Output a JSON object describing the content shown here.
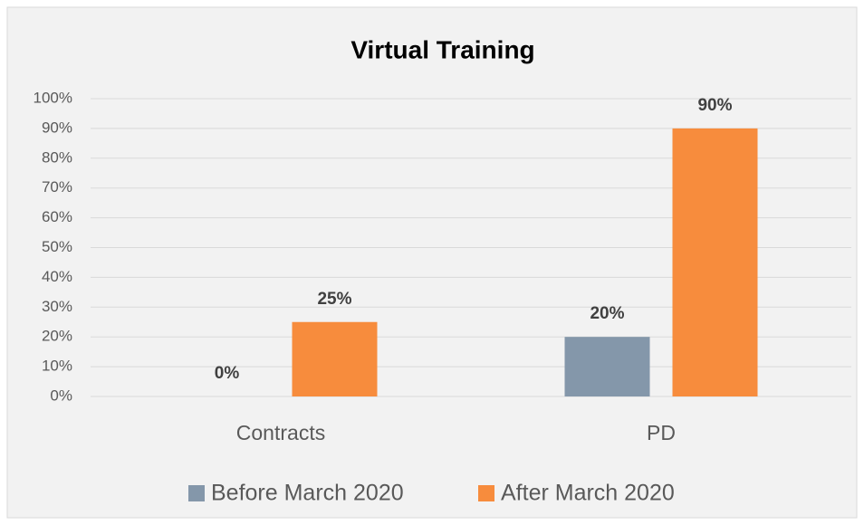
{
  "chart_data": {
    "type": "bar",
    "title": "Virtual Training",
    "categories": [
      "Contracts",
      "PD"
    ],
    "series": [
      {
        "name": "Before March 2020",
        "color": "#8497aa",
        "values": [
          0,
          20
        ],
        "value_labels": [
          "0%",
          "20%"
        ]
      },
      {
        "name": "After March 2020",
        "color": "#f78c3d",
        "values": [
          25,
          90
        ],
        "value_labels": [
          "25%",
          "90%"
        ]
      }
    ],
    "ylim": [
      0,
      100
    ],
    "yticks": [
      {
        "value": 0,
        "label": "0%"
      },
      {
        "value": 10,
        "label": "10%"
      },
      {
        "value": 20,
        "label": "20%"
      },
      {
        "value": 30,
        "label": "30%"
      },
      {
        "value": 40,
        "label": "40%"
      },
      {
        "value": 50,
        "label": "50%"
      },
      {
        "value": 60,
        "label": "60%"
      },
      {
        "value": 70,
        "label": "70%"
      },
      {
        "value": 80,
        "label": "80%"
      },
      {
        "value": 90,
        "label": "90%"
      },
      {
        "value": 100,
        "label": "100%"
      }
    ],
    "grid": true,
    "legend": "bottom"
  }
}
